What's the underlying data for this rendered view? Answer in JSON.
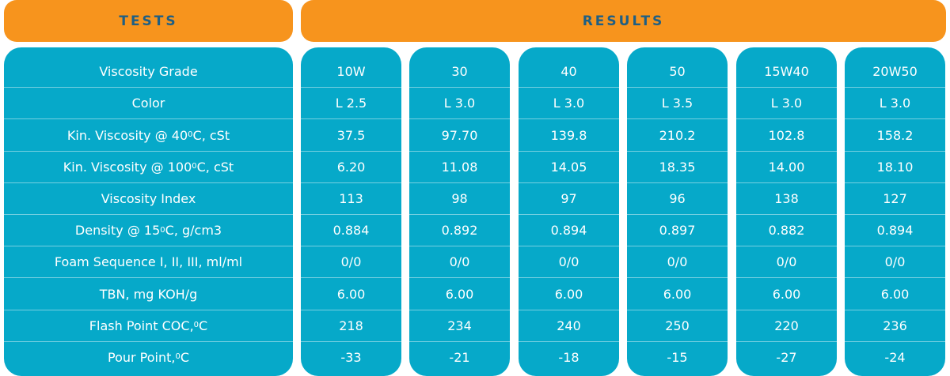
{
  "headers": {
    "tests": "TESTS",
    "results": "RESULTS"
  },
  "tests": [
    {
      "pre": "Viscosity Grade",
      "sup": "",
      "post": ""
    },
    {
      "pre": "Color",
      "sup": "",
      "post": ""
    },
    {
      "pre": "Kin. Viscosity @ 40 ",
      "sup": "0",
      "post": "C, cSt"
    },
    {
      "pre": "Kin. Viscosity @ 100 ",
      "sup": "0",
      "post": "C, cSt"
    },
    {
      "pre": "Viscosity Index",
      "sup": "",
      "post": ""
    },
    {
      "pre": "Density @ 15 ",
      "sup": "0",
      "post": "C, g/cm3"
    },
    {
      "pre": "Foam Sequence I, II, III, ml/ml",
      "sup": "",
      "post": ""
    },
    {
      "pre": "TBN, mg KOH/g",
      "sup": "",
      "post": ""
    },
    {
      "pre": "Flash Point COC,",
      "sup": "0",
      "post": "C"
    },
    {
      "pre": "Pour Point,",
      "sup": "0",
      "post": "C"
    }
  ],
  "results": [
    [
      "10W",
      "L 2.5",
      "37.5",
      "6.20",
      "113",
      "0.884",
      "0/0",
      "6.00",
      "218",
      "-33"
    ],
    [
      "30",
      "L 3.0",
      "97.70",
      "11.08",
      "98",
      "0.892",
      "0/0",
      "6.00",
      "234",
      "-21"
    ],
    [
      "40",
      "L 3.0",
      "139.8",
      "14.05",
      "97",
      "0.894",
      "0/0",
      "6.00",
      "240",
      "-18"
    ],
    [
      "50",
      "L 3.5",
      "210.2",
      "18.35",
      "96",
      "0.897",
      "0/0",
      "6.00",
      "250",
      "-15"
    ],
    [
      "15W40",
      "L 3.0",
      "102.8",
      "14.00",
      "138",
      "0.882",
      "0/0",
      "6.00",
      "220",
      "-27"
    ],
    [
      "20W50",
      "L 3.0",
      "158.2",
      "18.10",
      "127",
      "0.894",
      "0/0",
      "6.00",
      "236",
      "-24"
    ]
  ],
  "colors": {
    "header_bg": "#f7941d",
    "header_text": "#1f5f84",
    "cell_bg": "#06a9c9",
    "cell_text": "#ffffff"
  }
}
